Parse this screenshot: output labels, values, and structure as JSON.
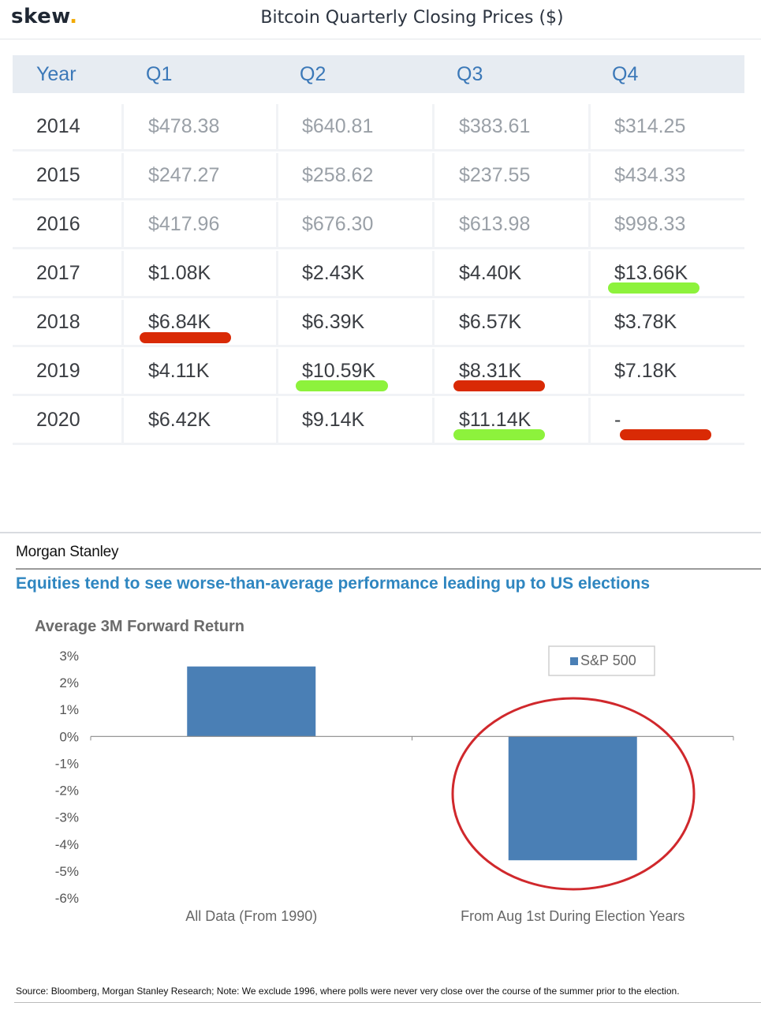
{
  "skew": {
    "logo_text": "skew",
    "logo_dot": ".",
    "title": "Bitcoin Quarterly Closing Prices ($)"
  },
  "table": {
    "headers": [
      "Year",
      "Q1",
      "Q2",
      "Q3",
      "Q4"
    ],
    "rows": [
      {
        "year": "2014",
        "q1": "$478.38",
        "q2": "$640.81",
        "q3": "$383.61",
        "q4": "$314.25"
      },
      {
        "year": "2015",
        "q1": "$247.27",
        "q2": "$258.62",
        "q3": "$237.55",
        "q4": "$434.33"
      },
      {
        "year": "2016",
        "q1": "$417.96",
        "q2": "$676.30",
        "q3": "$613.98",
        "q4": "$998.33"
      },
      {
        "year": "2017",
        "q1": "$1.08K",
        "q2": "$2.43K",
        "q3": "$4.40K",
        "q4": "$13.66K"
      },
      {
        "year": "2018",
        "q1": "$6.84K",
        "q2": "$6.39K",
        "q3": "$6.57K",
        "q4": "$3.78K"
      },
      {
        "year": "2019",
        "q1": "$4.11K",
        "q2": "$10.59K",
        "q3": "$8.31K",
        "q4": "$7.18K"
      },
      {
        "year": "2020",
        "q1": "$6.42K",
        "q2": "$9.14K",
        "q3": "$11.14K",
        "q4": "-"
      }
    ],
    "highlight_colors": {
      "green": "#8df23c",
      "red": "#d92a05"
    }
  },
  "morgan_stanley": {
    "brand": "Morgan Stanley",
    "headline": "Equities tend to see worse-than-average performance leading up to US elections",
    "source_note": "Source: Bloomberg, Morgan Stanley Research; Note: We exclude 1996, where polls were never very close over the course of the summer prior to the election."
  },
  "chart_data": {
    "type": "bar",
    "title": "Average 3M Forward Return",
    "categories": [
      "All Data (From 1990)",
      "From Aug 1st During Election Years"
    ],
    "series": [
      {
        "name": "S&P 500",
        "values": [
          2.6,
          -4.6
        ],
        "color": "#4a7fb5"
      }
    ],
    "ylim": [
      -6,
      3
    ],
    "y_ticks": [
      {
        "value": 3,
        "label": "3%"
      },
      {
        "value": 2,
        "label": "2%"
      },
      {
        "value": 1,
        "label": "1%"
      },
      {
        "value": 0,
        "label": "0%"
      },
      {
        "value": -1,
        "label": "-1%"
      },
      {
        "value": -2,
        "label": "-2%"
      },
      {
        "value": -3,
        "label": "-3%"
      },
      {
        "value": -4,
        "label": "-4%"
      },
      {
        "value": -5,
        "label": "-5%"
      },
      {
        "value": -6,
        "label": "-6%"
      }
    ],
    "legend_position": "top-right",
    "annotation_color": "#d0282c",
    "grid": false
  }
}
